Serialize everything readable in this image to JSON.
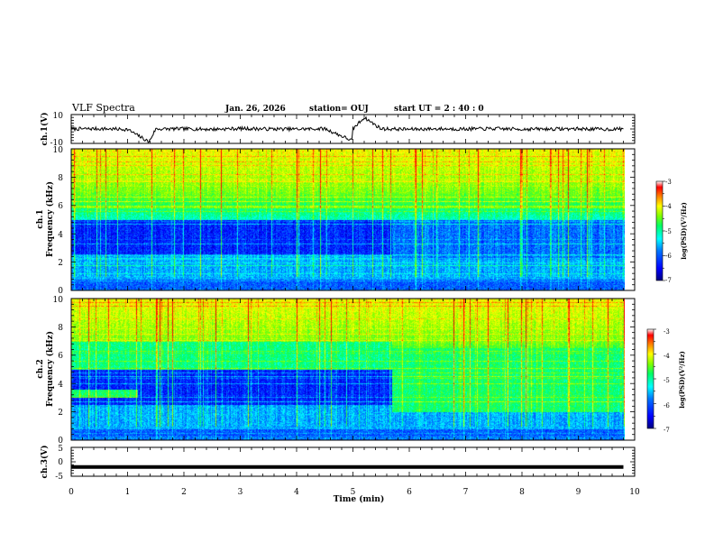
{
  "header": {
    "title": "VLF Spectra",
    "date": "Jan. 26, 2026",
    "station": "station= OUJ",
    "start": "start  UT =  2 : 40 : 0"
  },
  "colors": {
    "colormap": [
      "#00007f",
      "#0000ff",
      "#0077ff",
      "#00ffff",
      "#00ff66",
      "#7fff00",
      "#ffff00",
      "#ff7f00",
      "#ff0000",
      "#ffffff"
    ]
  },
  "chart_data": [
    {
      "type": "line",
      "id": "ch1-waveform",
      "ylabel": "ch.1(V)",
      "ylim": [
        -10,
        10
      ],
      "yticks": [
        "10",
        "-10"
      ],
      "x": [
        0,
        0.5,
        1,
        1.38,
        1.5,
        2,
        2.5,
        3,
        3.5,
        4,
        4.5,
        4.98,
        5,
        5.2,
        5.5,
        6,
        6.5,
        7,
        7.5,
        8,
        8.5,
        9,
        9.5,
        9.8
      ],
      "y": [
        0,
        0.2,
        -0.3,
        -9,
        0,
        0.1,
        -0.2,
        0.3,
        0,
        -0.1,
        0.2,
        -8,
        0,
        8,
        0.1,
        -0.2,
        0.1,
        0,
        0.2,
        -0.1,
        0,
        0.1,
        -0.2,
        0
      ]
    },
    {
      "type": "heatmap",
      "id": "ch1-spectrogram",
      "ylabel": "ch.1",
      "ylabel2": "Frequency  (kHz)",
      "xlim": [
        0,
        10
      ],
      "ylim": [
        0,
        10
      ],
      "yticks": [
        "0",
        "2",
        "4",
        "6",
        "8",
        "10"
      ],
      "colorbar": {
        "label": "log(PSD)(V²/Hz)",
        "range": [
          -7,
          -3
        ],
        "ticks": [
          "-3",
          "-4",
          "-5",
          "-6",
          "-7"
        ]
      }
    },
    {
      "type": "heatmap",
      "id": "ch2-spectrogram",
      "ylabel": "ch.2",
      "ylabel2": "Frequency  (kHz)",
      "xlim": [
        0,
        10
      ],
      "ylim": [
        0,
        10
      ],
      "yticks": [
        "0",
        "2",
        "4",
        "6",
        "8",
        "10"
      ],
      "colorbar": {
        "label": "log(PSD)(V²/Hz)",
        "range": [
          -7,
          -3
        ],
        "ticks": [
          "-3",
          "-4",
          "-5",
          "-6",
          "-7"
        ]
      }
    },
    {
      "type": "line",
      "id": "ch3-waveform",
      "ylabel": "ch.3(V)",
      "xlabel": "Time  (min)",
      "xlim": [
        0,
        10
      ],
      "ylim": [
        -5,
        5
      ],
      "yticks": [
        "5",
        "0",
        "-5"
      ],
      "xticks": [
        "0",
        "1",
        "2",
        "3",
        "4",
        "5",
        "6",
        "7",
        "8",
        "9",
        "10"
      ],
      "x": [
        0,
        9.8
      ],
      "y": [
        -1.8,
        -1.8
      ]
    }
  ]
}
